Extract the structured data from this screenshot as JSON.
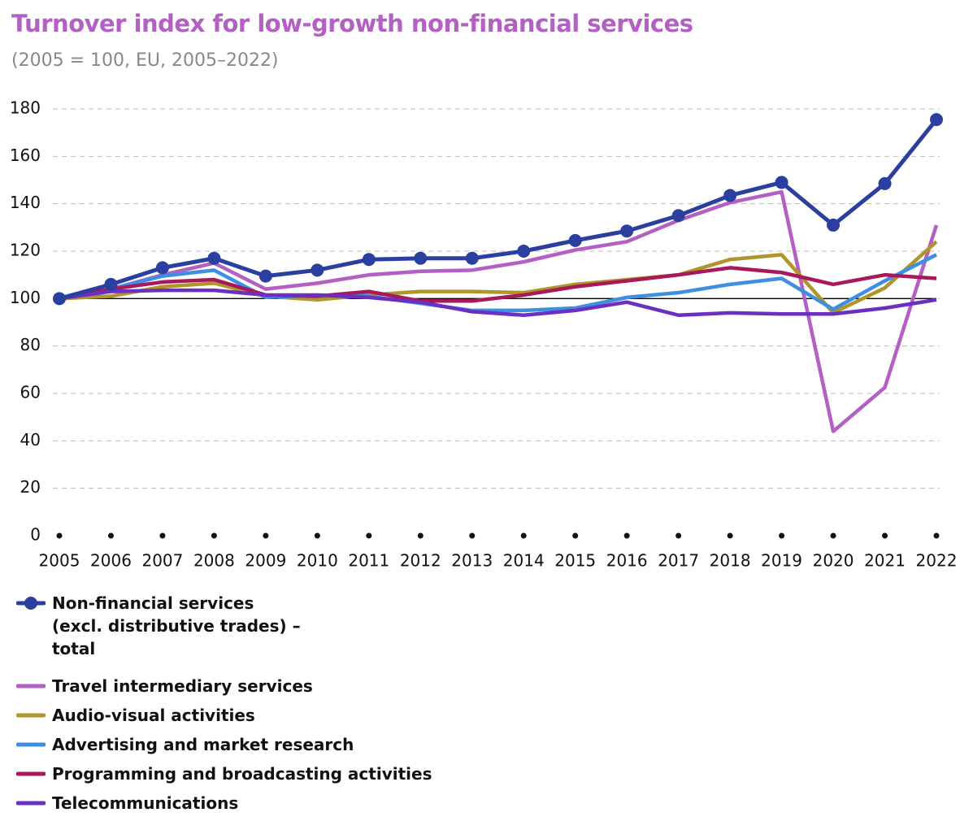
{
  "chart_data": {
    "type": "line",
    "title": "Turnover index for low-growth non-financial services",
    "subtitle": "(2005 = 100, EU, 2005–2022)",
    "categories": [
      "2005",
      "2006",
      "2007",
      "2008",
      "2009",
      "2010",
      "2011",
      "2012",
      "2013",
      "2014",
      "2015",
      "2016",
      "2017",
      "2018",
      "2019",
      "2020",
      "2021",
      "2022"
    ],
    "ylim": [
      0,
      180
    ],
    "yticks": [
      0,
      20,
      40,
      60,
      80,
      100,
      120,
      140,
      160,
      180
    ],
    "grid": true,
    "baseline": 100,
    "series": [
      {
        "name": "Non-financial services (excl. distributive trades) – total",
        "color": "#2a3fa0",
        "markers": true,
        "values": [
          100,
          106,
          113,
          117,
          109.5,
          112,
          116.5,
          117,
          117,
          120,
          124.5,
          128.5,
          135,
          143.5,
          149,
          131,
          148.5,
          175.5
        ]
      },
      {
        "name": "Travel intermediary services",
        "color": "#b35fc3",
        "values": [
          100,
          104,
          110,
          115,
          104,
          106.5,
          110,
          111.5,
          112,
          115.5,
          120.5,
          124,
          133,
          140.5,
          145,
          44,
          62.5,
          131
        ]
      },
      {
        "name": "Audio-visual activities",
        "color": "#b0952a",
        "values": [
          100,
          101,
          105,
          106.5,
          101,
          99.5,
          101.5,
          103,
          103,
          102.5,
          106,
          108,
          110,
          116.5,
          118.5,
          94,
          104.5,
          124
        ]
      },
      {
        "name": "Advertising and market research",
        "color": "#3f8fe0",
        "values": [
          100,
          104,
          109.5,
          112,
          100.5,
          101.5,
          101,
          98,
          95,
          95,
          96,
          100.5,
          102.5,
          106,
          108.5,
          95.5,
          107.5,
          118.5
        ]
      },
      {
        "name": "Programming and broadcasting activities",
        "color": "#a8185a",
        "values": [
          100,
          104,
          107,
          108,
          101.5,
          101,
          103,
          99,
          99,
          101.5,
          105,
          107.5,
          110,
          113,
          111,
          106,
          110,
          108.5
        ]
      },
      {
        "name": "Telecommunications",
        "color": "#6c2fc1",
        "values": [
          100,
          103,
          103.5,
          103.5,
          101.5,
          101.5,
          100.5,
          98.5,
          94.5,
          93,
          95,
          98.5,
          93,
          94,
          93.5,
          93.5,
          96,
          99.5
        ]
      }
    ]
  }
}
